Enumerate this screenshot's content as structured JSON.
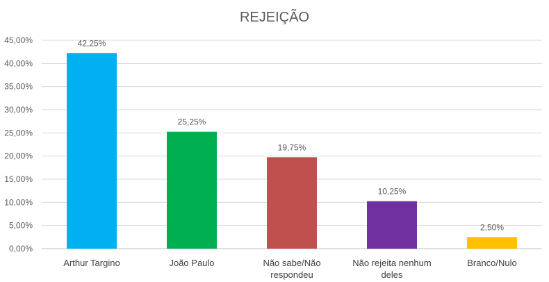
{
  "chart_data": {
    "type": "bar",
    "title": "REJEIÇÃO",
    "categories": [
      [
        "Arthur Targino"
      ],
      [
        "João Paulo"
      ],
      [
        "Não sabe/Não",
        "respondeu"
      ],
      [
        "Não rejeita nenhum",
        "deles"
      ],
      [
        "Branco/Nulo"
      ]
    ],
    "values": [
      42.25,
      25.25,
      19.75,
      10.25,
      2.5
    ],
    "value_labels": [
      "42,25%",
      "25,25%",
      "19,75%",
      "10,25%",
      "2,50%"
    ],
    "colors": [
      "#00b0f0",
      "#00b050",
      "#c0504d",
      "#7030a0",
      "#ffc000"
    ],
    "ylim": [
      0,
      45
    ],
    "yticks": [
      0,
      5,
      10,
      15,
      20,
      25,
      30,
      35,
      40,
      45
    ],
    "ytick_labels": [
      "0,00%",
      "5,00%",
      "10,00%",
      "15,00%",
      "20,00%",
      "25,00%",
      "30,00%",
      "35,00%",
      "40,00%",
      "45,00%"
    ],
    "xlabel": "",
    "ylabel": "",
    "grid": true,
    "legend": "none"
  }
}
